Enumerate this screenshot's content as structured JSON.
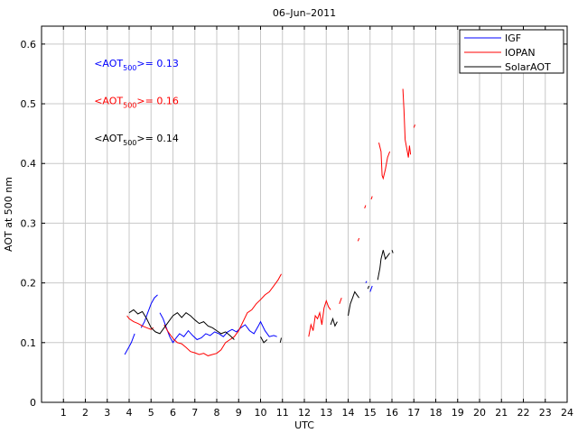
{
  "chart_data": {
    "type": "line",
    "title": "06–Jun–2011",
    "xlabel": "UTC",
    "ylabel": "AOT at 500 nm",
    "xlim": [
      0,
      24
    ],
    "ylim": [
      0,
      0.63
    ],
    "xticks": [
      1,
      2,
      3,
      4,
      5,
      6,
      7,
      8,
      9,
      10,
      11,
      12,
      13,
      14,
      15,
      16,
      17,
      18,
      19,
      20,
      21,
      22,
      23,
      24
    ],
    "yticks": [
      0,
      0.1,
      0.2,
      0.3,
      0.4,
      0.5,
      0.6
    ],
    "ytick_labels": [
      "0",
      "0.1",
      "0.2",
      "0.3",
      "0.4",
      "0.5",
      "0.6"
    ],
    "grid": true,
    "legend_position": "top-right",
    "annotations": [
      {
        "prefix": "<AOT",
        "sub": "500",
        "suffix": ">= 0.13",
        "color": "#0000ff",
        "x": 2.4,
        "y": 0.568
      },
      {
        "prefix": "<AOT",
        "sub": "500",
        "suffix": ">= 0.16",
        "color": "#ff0000",
        "x": 2.4,
        "y": 0.505
      },
      {
        "prefix": "<AOT",
        "sub": "500",
        "suffix": ">= 0.14",
        "color": "#000000",
        "x": 2.4,
        "y": 0.443
      }
    ],
    "series": [
      {
        "name": "IGF",
        "color": "#0000ff",
        "segments": [
          [
            [
              3.8,
              0.08
            ],
            [
              3.95,
              0.09
            ],
            [
              4.1,
              0.1
            ],
            [
              4.25,
              0.115
            ]
          ],
          [
            [
              4.55,
              0.125
            ],
            [
              4.7,
              0.135
            ],
            [
              4.85,
              0.15
            ],
            [
              5.0,
              0.165
            ],
            [
              5.15,
              0.175
            ],
            [
              5.3,
              0.18
            ]
          ],
          [
            [
              5.4,
              0.15
            ],
            [
              5.55,
              0.14
            ],
            [
              5.7,
              0.125
            ],
            [
              5.85,
              0.11
            ],
            [
              6.0,
              0.1
            ],
            [
              6.15,
              0.108
            ],
            [
              6.3,
              0.115
            ],
            [
              6.5,
              0.11
            ],
            [
              6.7,
              0.12
            ],
            [
              6.9,
              0.112
            ],
            [
              7.1,
              0.105
            ],
            [
              7.3,
              0.108
            ],
            [
              7.5,
              0.115
            ],
            [
              7.7,
              0.112
            ],
            [
              7.9,
              0.118
            ],
            [
              8.1,
              0.115
            ],
            [
              8.3,
              0.11
            ],
            [
              8.5,
              0.118
            ],
            [
              8.7,
              0.122
            ],
            [
              8.9,
              0.118
            ],
            [
              9.1,
              0.125
            ],
            [
              9.3,
              0.13
            ],
            [
              9.5,
              0.12
            ],
            [
              9.7,
              0.115
            ],
            [
              9.9,
              0.128
            ],
            [
              10.0,
              0.135
            ],
            [
              10.2,
              0.12
            ],
            [
              10.4,
              0.11
            ],
            [
              10.6,
              0.112
            ],
            [
              10.75,
              0.11
            ]
          ],
          [
            [
              14.8,
              0.2
            ],
            [
              14.85,
              0.203
            ]
          ],
          [
            [
              15.0,
              0.185
            ],
            [
              15.1,
              0.195
            ]
          ]
        ]
      },
      {
        "name": "IOPAN",
        "color": "#ff0000",
        "segments": [
          [
            [
              3.9,
              0.145
            ],
            [
              4.0,
              0.14
            ],
            [
              4.2,
              0.135
            ],
            [
              4.4,
              0.132
            ],
            [
              4.6,
              0.128
            ],
            [
              4.8,
              0.125
            ],
            [
              5.0,
              0.122
            ],
            [
              5.1,
              0.125
            ]
          ],
          [
            [
              5.6,
              0.13
            ],
            [
              5.75,
              0.12
            ],
            [
              5.9,
              0.112
            ],
            [
              6.05,
              0.105
            ],
            [
              6.2,
              0.1
            ],
            [
              6.4,
              0.098
            ],
            [
              6.6,
              0.092
            ],
            [
              6.8,
              0.085
            ],
            [
              7.0,
              0.083
            ],
            [
              7.2,
              0.08
            ],
            [
              7.4,
              0.082
            ],
            [
              7.6,
              0.078
            ],
            [
              7.8,
              0.08
            ],
            [
              8.0,
              0.082
            ],
            [
              8.2,
              0.088
            ],
            [
              8.4,
              0.1
            ],
            [
              8.6,
              0.105
            ],
            [
              8.8,
              0.11
            ],
            [
              9.0,
              0.12
            ],
            [
              9.2,
              0.135
            ],
            [
              9.4,
              0.15
            ],
            [
              9.6,
              0.155
            ],
            [
              9.8,
              0.165
            ],
            [
              10.0,
              0.172
            ],
            [
              10.2,
              0.18
            ],
            [
              10.4,
              0.185
            ],
            [
              10.6,
              0.195
            ],
            [
              10.8,
              0.205
            ],
            [
              10.95,
              0.215
            ]
          ],
          [
            [
              12.2,
              0.11
            ],
            [
              12.3,
              0.13
            ],
            [
              12.4,
              0.12
            ],
            [
              12.5,
              0.145
            ],
            [
              12.6,
              0.14
            ],
            [
              12.7,
              0.15
            ],
            [
              12.8,
              0.13
            ],
            [
              12.9,
              0.158
            ],
            [
              13.0,
              0.17
            ],
            [
              13.1,
              0.16
            ],
            [
              13.2,
              0.155
            ]
          ],
          [
            [
              13.6,
              0.165
            ],
            [
              13.7,
              0.175
            ]
          ],
          [
            [
              14.45,
              0.27
            ],
            [
              14.5,
              0.275
            ]
          ],
          [
            [
              14.75,
              0.325
            ],
            [
              14.8,
              0.33
            ]
          ],
          [
            [
              15.05,
              0.34
            ],
            [
              15.1,
              0.345
            ]
          ],
          [
            [
              15.4,
              0.435
            ],
            [
              15.5,
              0.42
            ],
            [
              15.55,
              0.38
            ],
            [
              15.6,
              0.375
            ],
            [
              15.7,
              0.39
            ],
            [
              15.8,
              0.41
            ],
            [
              15.9,
              0.42
            ]
          ],
          [
            [
              16.5,
              0.525
            ],
            [
              16.55,
              0.49
            ],
            [
              16.6,
              0.44
            ],
            [
              16.7,
              0.42
            ],
            [
              16.75,
              0.41
            ],
            [
              16.8,
              0.43
            ],
            [
              16.85,
              0.415
            ]
          ],
          [
            [
              17.0,
              0.46
            ],
            [
              17.05,
              0.465
            ]
          ]
        ]
      },
      {
        "name": "SolarAOT",
        "color": "#000000",
        "segments": [
          [
            [
              4.0,
              0.15
            ],
            [
              4.2,
              0.155
            ],
            [
              4.4,
              0.148
            ],
            [
              4.6,
              0.152
            ],
            [
              4.8,
              0.14
            ],
            [
              5.0,
              0.125
            ],
            [
              5.2,
              0.118
            ],
            [
              5.4,
              0.115
            ],
            [
              5.6,
              0.125
            ],
            [
              5.8,
              0.135
            ],
            [
              6.0,
              0.145
            ],
            [
              6.2,
              0.15
            ],
            [
              6.4,
              0.142
            ],
            [
              6.6,
              0.15
            ],
            [
              6.8,
              0.145
            ],
            [
              7.0,
              0.138
            ],
            [
              7.2,
              0.132
            ],
            [
              7.4,
              0.135
            ],
            [
              7.6,
              0.128
            ],
            [
              7.8,
              0.125
            ],
            [
              8.0,
              0.12
            ],
            [
              8.2,
              0.115
            ],
            [
              8.4,
              0.118
            ],
            [
              8.6,
              0.112
            ],
            [
              8.8,
              0.105
            ]
          ],
          [
            [
              10.0,
              0.11
            ],
            [
              10.15,
              0.1
            ],
            [
              10.3,
              0.105
            ]
          ],
          [
            [
              10.9,
              0.1
            ],
            [
              10.95,
              0.108
            ]
          ],
          [
            [
              13.2,
              0.13
            ],
            [
              13.3,
              0.14
            ],
            [
              13.4,
              0.128
            ],
            [
              13.5,
              0.135
            ]
          ],
          [
            [
              14.0,
              0.145
            ],
            [
              14.1,
              0.165
            ],
            [
              14.2,
              0.175
            ],
            [
              14.3,
              0.185
            ],
            [
              14.4,
              0.18
            ],
            [
              14.5,
              0.175
            ]
          ],
          [
            [
              14.9,
              0.19
            ],
            [
              14.95,
              0.195
            ]
          ],
          [
            [
              15.35,
              0.205
            ],
            [
              15.45,
              0.225
            ],
            [
              15.5,
              0.24
            ],
            [
              15.6,
              0.255
            ],
            [
              15.7,
              0.24
            ],
            [
              15.8,
              0.245
            ],
            [
              15.9,
              0.25
            ]
          ],
          [
            [
              16.0,
              0.255
            ],
            [
              16.05,
              0.25
            ]
          ]
        ]
      }
    ]
  }
}
